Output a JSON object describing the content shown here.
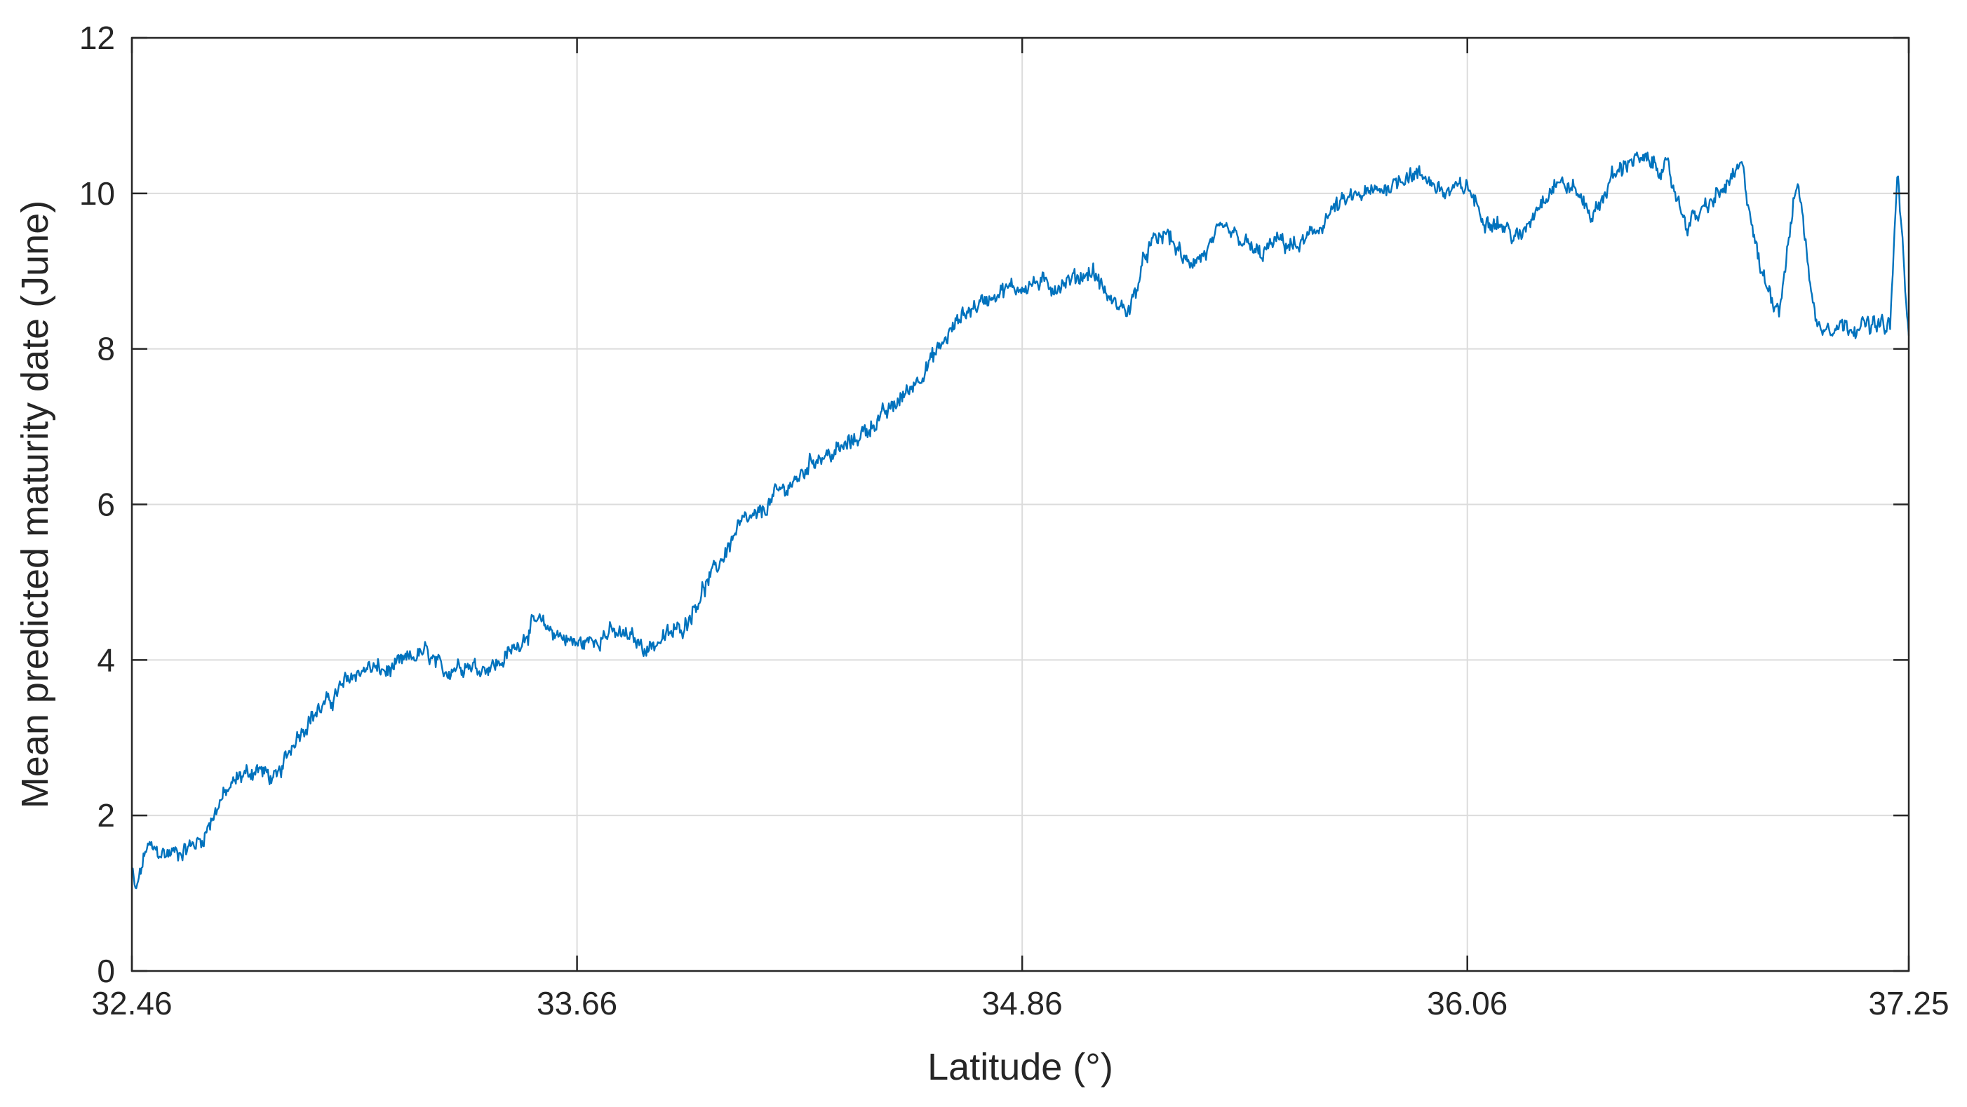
{
  "chart_data": {
    "type": "line",
    "title": "",
    "xlabel": "Latitude (°)",
    "ylabel": "Mean predicted maturity date (June)",
    "xlim": [
      32.46,
      37.25
    ],
    "ylim": [
      0,
      12
    ],
    "xticks": [
      32.46,
      33.66,
      34.86,
      36.06,
      37.25
    ],
    "xtick_labels": [
      "32.46",
      "33.66",
      "34.86",
      "36.06",
      "37.25"
    ],
    "yticks": [
      0,
      2,
      4,
      6,
      8,
      10,
      12
    ],
    "ytick_labels": [
      "0",
      "2",
      "4",
      "6",
      "8",
      "10",
      "12"
    ],
    "grid": true,
    "legend": "none",
    "series": [
      {
        "color": "#0072BD",
        "x": [
          32.46,
          32.47,
          32.5,
          32.55,
          32.6,
          32.65,
          32.7,
          32.75,
          32.8,
          32.85,
          32.9,
          32.95,
          33.0,
          33.05,
          33.1,
          33.15,
          33.2,
          33.25,
          33.3,
          33.35,
          33.4,
          33.45,
          33.5,
          33.55,
          33.6,
          33.66,
          33.7,
          33.75,
          33.8,
          33.85,
          33.9,
          33.95,
          34.0,
          34.05,
          34.1,
          34.15,
          34.2,
          34.25,
          34.3,
          34.35,
          34.4,
          34.45,
          34.5,
          34.55,
          34.6,
          34.65,
          34.7,
          34.75,
          34.8,
          34.86,
          34.9,
          34.95,
          35.0,
          35.05,
          35.1,
          35.15,
          35.2,
          35.25,
          35.3,
          35.35,
          35.4,
          35.45,
          35.5,
          35.55,
          35.6,
          35.65,
          35.7,
          35.75,
          35.8,
          35.85,
          35.9,
          35.95,
          36.0,
          36.06,
          36.1,
          36.15,
          36.2,
          36.25,
          36.3,
          36.35,
          36.4,
          36.45,
          36.5,
          36.55,
          36.6,
          36.65,
          36.7,
          36.75,
          36.8,
          36.85,
          36.9,
          36.95,
          37.0,
          37.05,
          37.1,
          37.15,
          37.2,
          37.22,
          37.25
        ],
        "y": [
          1.3,
          1.0,
          1.6,
          1.5,
          1.55,
          1.7,
          2.2,
          2.5,
          2.6,
          2.45,
          3.0,
          3.3,
          3.5,
          3.8,
          3.9,
          3.85,
          4.0,
          4.1,
          3.85,
          3.95,
          3.9,
          3.95,
          4.2,
          4.5,
          4.35,
          4.2,
          4.25,
          4.35,
          4.3,
          4.15,
          4.3,
          4.45,
          4.9,
          5.3,
          5.75,
          5.85,
          6.15,
          6.3,
          6.6,
          6.65,
          6.8,
          7.0,
          7.2,
          7.45,
          7.75,
          8.1,
          8.45,
          8.6,
          8.75,
          8.8,
          8.85,
          8.8,
          8.9,
          9.0,
          8.6,
          8.5,
          9.3,
          9.5,
          9.1,
          9.2,
          9.55,
          9.4,
          9.2,
          9.4,
          9.3,
          9.5,
          9.8,
          9.95,
          10.0,
          10.1,
          10.25,
          10.2,
          10.0,
          10.1,
          9.7,
          9.6,
          9.4,
          9.85,
          10.15,
          10.05,
          9.7,
          10.2,
          10.45,
          10.4,
          10.3,
          9.6,
          9.8,
          10.05,
          10.35,
          9.0,
          8.5,
          10.2,
          8.3,
          8.3,
          8.3,
          8.3,
          8.3,
          10.3,
          8.1
        ]
      }
    ]
  }
}
